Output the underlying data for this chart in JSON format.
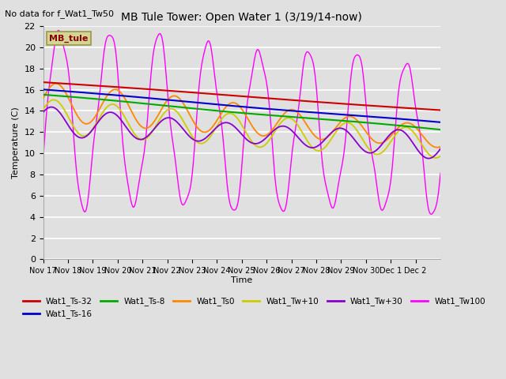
{
  "title": "MB Tule Tower: Open Water 1 (3/19/14-now)",
  "subtitle": "No data for f_Wat1_Tw50",
  "xlabel": "Time",
  "ylabel": "Temperature (C)",
  "ylim": [
    0,
    22
  ],
  "yticks": [
    0,
    2,
    4,
    6,
    8,
    10,
    12,
    14,
    16,
    18,
    20,
    22
  ],
  "bg_color": "#e0e0e0",
  "plot_bg": "#e0e0e0",
  "legend_box_label": "MB_tule",
  "legend_box_color": "#d4d496",
  "legend_box_text_color": "#880000",
  "series_colors": {
    "Wat1_Ts-32": "#cc0000",
    "Wat1_Ts-16": "#0000cc",
    "Wat1_Ts-8": "#00aa00",
    "Wat1_Ts0": "#ff8800",
    "Wat1_Tw+10": "#cccc00",
    "Wat1_Tw+30": "#8800cc",
    "Wat1_Tw100": "#ff00ff"
  },
  "x_tick_labels": [
    "Nov 17",
    "Nov 18",
    "Nov 19",
    "Nov 20",
    "Nov 21",
    "Nov 22",
    "Nov 23",
    "Nov 24",
    "Nov 25",
    "Nov 26",
    "Nov 27",
    "Nov 28",
    "Nov 29",
    "Nov 30",
    "Dec 1",
    "Dec 2"
  ],
  "n_days": 16
}
